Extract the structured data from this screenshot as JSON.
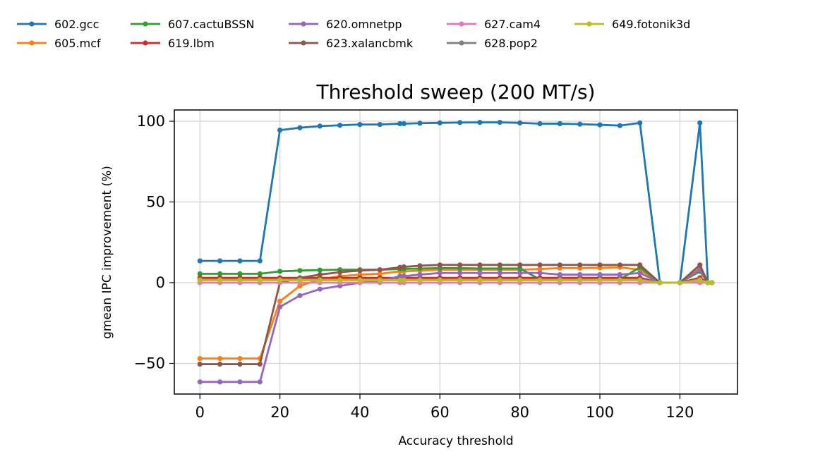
{
  "chart_data": {
    "type": "line",
    "title": "Threshold sweep (200 MT/s)",
    "xlabel": "Accuracy threshold",
    "ylabel": "gmean IPC improvement (%)",
    "xlim": [
      -6.4,
      134.4
    ],
    "ylim": [
      -69,
      107
    ],
    "xticks": [
      0,
      20,
      40,
      60,
      80,
      100,
      120
    ],
    "yticks": [
      -50,
      0,
      50,
      100
    ],
    "xtick_labels": [
      "0",
      "20",
      "40",
      "60",
      "80",
      "100",
      "120"
    ],
    "ytick_labels": [
      "−50",
      "0",
      "50",
      "100"
    ],
    "grid": true,
    "legend_position": "top, above plot, 6 columns",
    "x": [
      0,
      5,
      10,
      15,
      20,
      25,
      30,
      35,
      40,
      45,
      50,
      51,
      55,
      60,
      65,
      70,
      75,
      80,
      85,
      90,
      95,
      100,
      105,
      110,
      115,
      120,
      125,
      127,
      128
    ],
    "series": [
      {
        "name": "602.gcc",
        "color": "#1f77b4",
        "values": [
          13.5,
          13.5,
          13.5,
          13.5,
          94.5,
          96,
          97,
          97.5,
          98,
          98,
          98.5,
          98.5,
          98.8,
          99,
          99.2,
          99.3,
          99.3,
          99,
          98.5,
          98.5,
          98.2,
          97.8,
          97.3,
          99,
          0,
          0,
          99,
          0,
          0
        ]
      },
      {
        "name": "605.mcf",
        "color": "#ff7f0e",
        "values": [
          -47,
          -47,
          -47,
          -47,
          -11.5,
          -2,
          2,
          4,
          5,
          5.5,
          7,
          7,
          7.5,
          8,
          8,
          8,
          8,
          8,
          8.5,
          9,
          9,
          9.2,
          9.5,
          8,
          0,
          0,
          9,
          0,
          0
        ]
      },
      {
        "name": "607.cactuBSSN",
        "color": "#2ca02c",
        "values": [
          5.5,
          5.5,
          5.5,
          5.5,
          7,
          7.5,
          7.8,
          8,
          8,
          8,
          8.5,
          8.5,
          8.8,
          9,
          9,
          8.8,
          8.8,
          8.8,
          2,
          2,
          2,
          2,
          2,
          9.5,
          0,
          0,
          7,
          0,
          0
        ]
      },
      {
        "name": "619.lbm",
        "color": "#d62728",
        "values": [
          3,
          3,
          3,
          3,
          3,
          3,
          3,
          3,
          3,
          3,
          3,
          3,
          3,
          3,
          3,
          3,
          3,
          3,
          3,
          3,
          3,
          3,
          3,
          3,
          0,
          0,
          3,
          0,
          0
        ]
      },
      {
        "name": "620.omnetpp",
        "color": "#9467bd",
        "values": [
          -61.5,
          -61.5,
          -61.5,
          -61.5,
          -15,
          -8,
          -4,
          -2,
          0,
          1,
          4,
          4,
          5,
          6,
          6,
          6,
          6,
          6,
          6,
          5,
          5,
          5,
          5,
          6,
          0,
          0,
          8,
          0,
          0
        ]
      },
      {
        "name": "623.xalancbmk",
        "color": "#8c564b",
        "values": [
          -50.5,
          -50.5,
          -50.5,
          -50.5,
          0,
          3,
          5,
          6.5,
          7.5,
          8,
          9.5,
          9.8,
          10.5,
          11,
          11,
          11,
          11,
          11,
          11,
          11,
          11,
          11,
          11,
          11,
          0,
          0,
          11,
          0,
          0
        ]
      },
      {
        "name": "627.cam4",
        "color": "#e377c2",
        "values": [
          0,
          0,
          0,
          0,
          0,
          0,
          0,
          0,
          0,
          0,
          0,
          0,
          0,
          0,
          0,
          0,
          0,
          0,
          0,
          0,
          0,
          0,
          0,
          0,
          0,
          0,
          0,
          0,
          0
        ]
      },
      {
        "name": "628.pop2",
        "color": "#7f7f7f",
        "values": [
          2,
          2,
          2,
          2,
          2,
          2,
          2,
          2,
          2,
          2,
          2,
          2,
          2,
          2,
          2,
          2,
          2,
          2,
          2,
          2,
          2,
          2,
          2,
          2,
          0,
          0,
          2,
          0,
          0
        ]
      },
      {
        "name": "649.fotonik3d",
        "color": "#bcbd22",
        "values": [
          1.5,
          1.5,
          1.5,
          1.5,
          1.5,
          1.5,
          1.5,
          1.5,
          1.5,
          1.5,
          1.5,
          1.5,
          1.5,
          1.5,
          1.5,
          1.5,
          1.5,
          1.5,
          1.5,
          1.5,
          1.5,
          1.5,
          1.5,
          1.5,
          0,
          0,
          1.5,
          0,
          0
        ]
      }
    ]
  }
}
